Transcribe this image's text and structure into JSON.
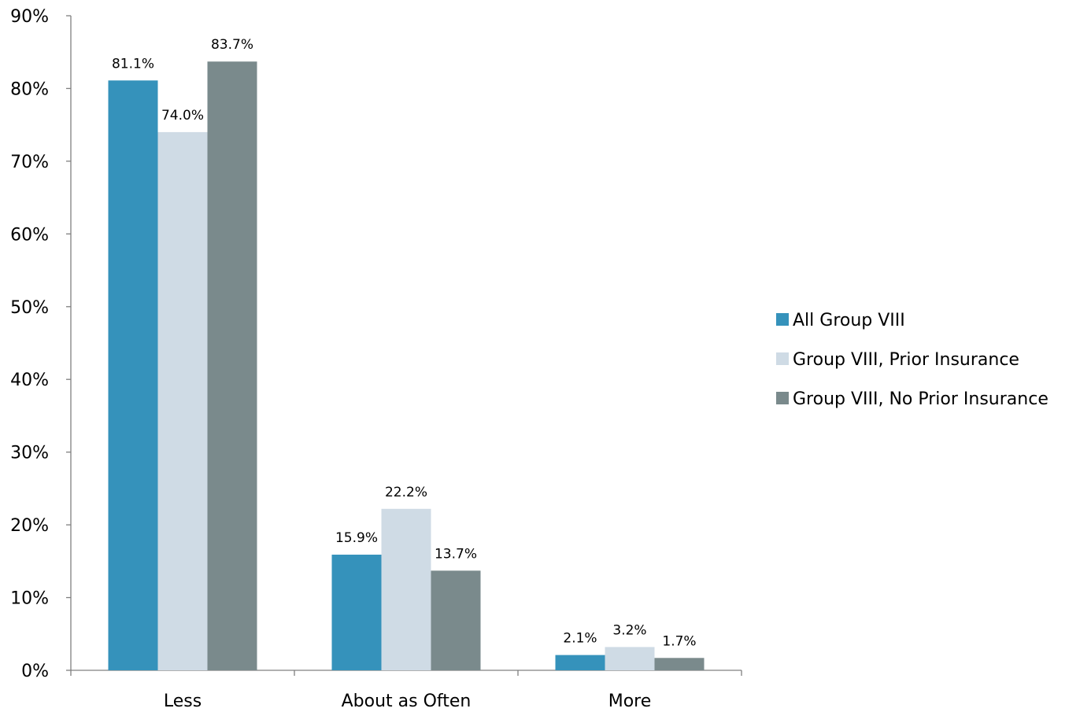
{
  "chart_data": {
    "type": "bar",
    "categories": [
      "Less",
      "About as Often",
      "More"
    ],
    "series": [
      {
        "name": "All Group VIII",
        "color": "#3592bb",
        "values": [
          81.1,
          15.9,
          2.1
        ],
        "labels": [
          "81.1%",
          "15.9%",
          "2.1%"
        ]
      },
      {
        "name": "Group VIII, Prior Insurance",
        "color": "#cfdbe5",
        "values": [
          74.0,
          22.2,
          3.2
        ],
        "labels": [
          "74.0%",
          "22.2%",
          "3.2%"
        ]
      },
      {
        "name": "Group VIII, No Prior Insurance",
        "color": "#7a8a8c",
        "values": [
          83.7,
          13.7,
          1.7
        ],
        "labels": [
          "83.7%",
          "13.7%",
          "1.7%"
        ]
      }
    ],
    "yticks": [
      0,
      10,
      20,
      30,
      40,
      50,
      60,
      70,
      80,
      90
    ],
    "ytick_labels": [
      "0%",
      "10%",
      "20%",
      "30%",
      "40%",
      "50%",
      "60%",
      "70%",
      "80%",
      "90%"
    ],
    "ylim": [
      0,
      90
    ],
    "unit": "%",
    "grid": false,
    "legend_position": "right"
  }
}
